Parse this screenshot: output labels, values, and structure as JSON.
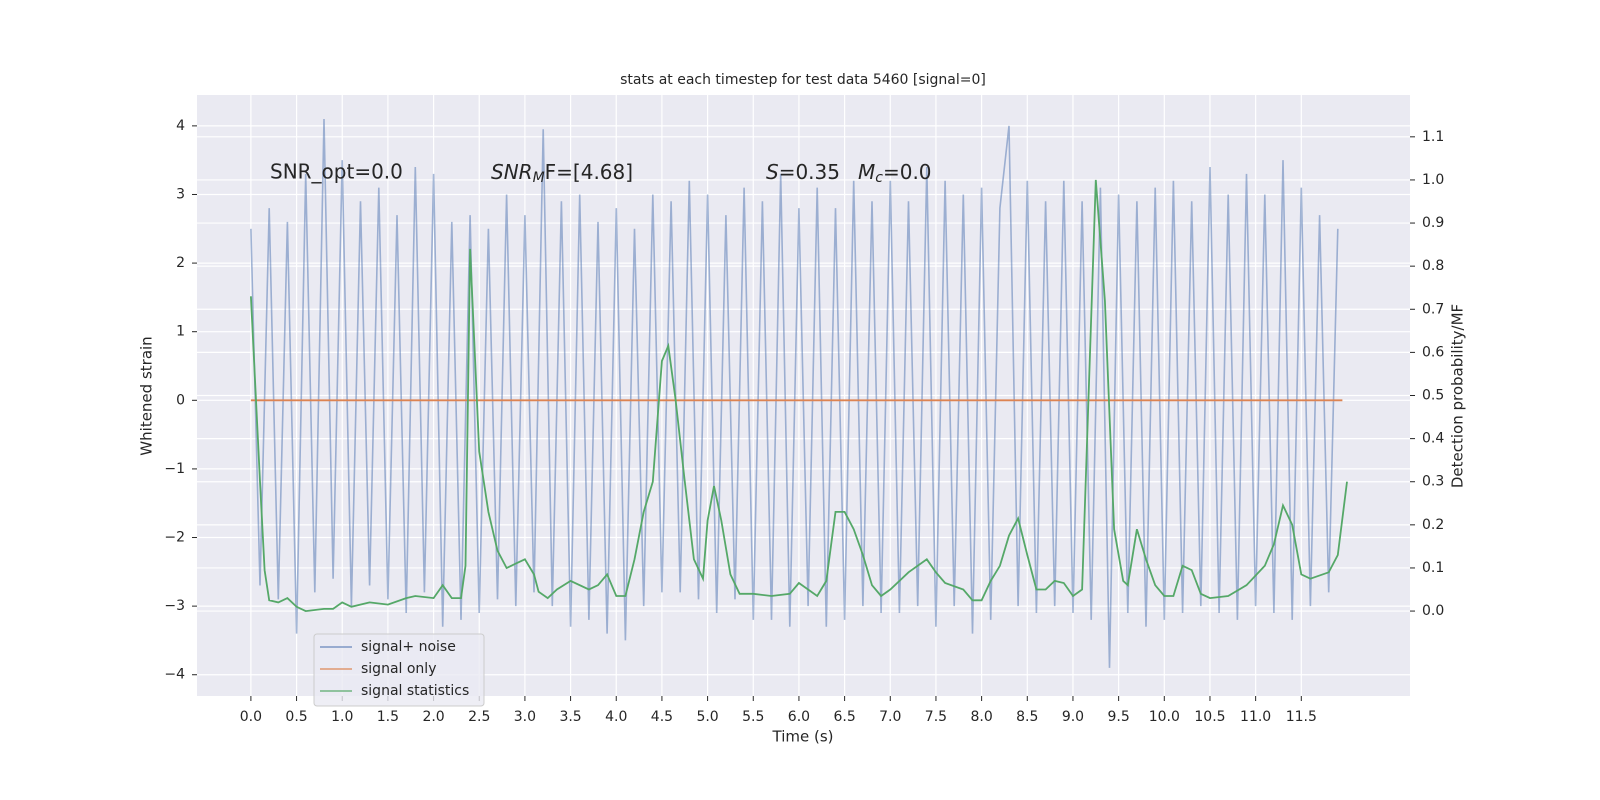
{
  "chart_data": {
    "type": "line",
    "title": "stats at each timestep for test data 5460 [signal=0]",
    "xlabel": "Time (s)",
    "ylabel": "Whitened strain",
    "y2label": "Detection probability/MF",
    "annotations": [
      "SNR_opt=0.0",
      [
        "SNR",
        "M",
        "F=[4.68]"
      ],
      [
        "S",
        "=0.35"
      ],
      [
        "M",
        "c",
        "=0.0"
      ]
    ],
    "xlim": [
      -0.59,
      12.69
    ],
    "ylim": [
      -4.31,
      4.45
    ],
    "y2lim": [
      -0.197,
      1.197
    ],
    "xticks": [
      {
        "value": 0,
        "label": "0.0"
      },
      {
        "value": 0.5,
        "label": "0.5"
      },
      {
        "value": 1,
        "label": "1.0"
      },
      {
        "value": 1.5,
        "label": "1.5"
      },
      {
        "value": 2,
        "label": "2.0"
      },
      {
        "value": 2.5,
        "label": "2.5"
      },
      {
        "value": 3,
        "label": "3.0"
      },
      {
        "value": 3.5,
        "label": "3.5"
      },
      {
        "value": 4,
        "label": "4.0"
      },
      {
        "value": 4.5,
        "label": "4.5"
      },
      {
        "value": 5,
        "label": "5.0"
      },
      {
        "value": 5.5,
        "label": "5.5"
      },
      {
        "value": 6,
        "label": "6.0"
      },
      {
        "value": 6.5,
        "label": "6.5"
      },
      {
        "value": 7,
        "label": "7.0"
      },
      {
        "value": 7.5,
        "label": "7.5"
      },
      {
        "value": 8,
        "label": "8.0"
      },
      {
        "value": 8.5,
        "label": "8.5"
      },
      {
        "value": 9,
        "label": "9.0"
      },
      {
        "value": 9.5,
        "label": "9.5"
      },
      {
        "value": 10,
        "label": "10.0"
      },
      {
        "value": 10.5,
        "label": "10.5"
      },
      {
        "value": 11,
        "label": "11.0"
      },
      {
        "value": 11.5,
        "label": "11.5"
      }
    ],
    "yticks": [
      {
        "value": -4,
        "label": "−4"
      },
      {
        "value": -3,
        "label": "−3"
      },
      {
        "value": -2,
        "label": "−2"
      },
      {
        "value": -1,
        "label": "−1"
      },
      0,
      1,
      2,
      3,
      4
    ],
    "y2ticks": [
      {
        "value": 0,
        "label": "0.0"
      },
      {
        "value": 0.1,
        "label": "0.1"
      },
      {
        "value": 0.2,
        "label": "0.2"
      },
      {
        "value": 0.3,
        "label": "0.3"
      },
      {
        "value": 0.4,
        "label": "0.4"
      },
      {
        "value": 0.5,
        "label": "0.5"
      },
      {
        "value": 0.6,
        "label": "0.6"
      },
      {
        "value": 0.7,
        "label": "0.7"
      },
      {
        "value": 0.8,
        "label": "0.8"
      },
      {
        "value": 0.9,
        "label": "0.9"
      },
      {
        "value": 1,
        "label": "1.0"
      },
      {
        "value": 1.1,
        "label": "1.1"
      }
    ],
    "grid": true,
    "legend": "lower left",
    "series": [
      {
        "name": "signal+ noise",
        "color": "#4c72b0",
        "x": [
          0,
          0.1,
          0.2,
          0.3,
          0.4,
          0.5,
          0.6,
          0.7,
          0.8,
          0.9,
          1,
          1.1,
          1.2,
          1.3,
          1.4,
          1.5,
          1.6,
          1.7,
          1.8,
          1.9,
          2,
          2.1,
          2.2,
          2.3,
          2.4,
          2.5,
          2.6,
          2.7,
          2.8,
          2.9,
          3,
          3.1,
          3.2,
          3.3,
          3.4,
          3.5,
          3.6,
          3.7,
          3.8,
          3.9,
          4,
          4.1,
          4.2,
          4.3,
          4.4,
          4.5,
          4.6,
          4.7,
          4.8,
          4.9,
          5,
          5.1,
          5.2,
          5.3,
          5.4,
          5.5,
          5.6,
          5.7,
          5.8,
          5.9,
          6,
          6.1,
          6.2,
          6.3,
          6.4,
          6.5,
          6.6,
          6.7,
          6.8,
          6.9,
          7,
          7.1,
          7.2,
          7.3,
          7.4,
          7.5,
          7.6,
          7.7,
          7.8,
          7.9,
          8,
          8.1,
          8.2,
          8.3,
          8.4,
          8.5,
          8.6,
          8.7,
          8.8,
          8.9,
          9,
          9.1,
          9.2,
          9.3,
          9.4,
          9.5,
          9.6,
          9.7,
          9.8,
          9.9,
          10,
          10.1,
          10.2,
          10.3,
          10.4,
          10.5,
          10.6,
          10.7,
          10.8,
          10.9,
          11,
          11.1,
          11.2,
          11.3,
          11.4,
          11.5,
          11.6,
          11.7,
          11.8,
          11.9
        ],
        "values": [
          2.5,
          -2.7,
          2.8,
          -2.9,
          2.6,
          -3.4,
          3.3,
          -2.8,
          4.1,
          -2.6,
          3.5,
          -3.0,
          2.9,
          -2.7,
          3.1,
          -2.9,
          2.7,
          -3.1,
          3.4,
          -2.8,
          3.3,
          -3.3,
          2.6,
          -3.2,
          2.7,
          -3.1,
          2.5,
          -2.9,
          3.0,
          -3.0,
          2.7,
          -2.8,
          3.95,
          -3.0,
          2.9,
          -3.3,
          3.0,
          -3.2,
          2.6,
          -3.4,
          2.8,
          -3.5,
          2.5,
          -3.0,
          3.0,
          -2.8,
          2.9,
          -2.8,
          3.2,
          -2.9,
          3.0,
          -3.1,
          2.7,
          -2.9,
          3.1,
          -3.2,
          2.9,
          -3.2,
          3.3,
          -3.3,
          2.8,
          -3.0,
          3.1,
          -3.3,
          2.8,
          -3.2,
          3.2,
          -3.0,
          2.9,
          -3.1,
          3.2,
          -3.1,
          2.9,
          -3.0,
          3.4,
          -3.3,
          3.2,
          -3.0,
          3.0,
          -3.4,
          3.1,
          -3.2,
          2.8,
          4.0,
          -3.0,
          3.2,
          -3.1,
          2.9,
          -3.0,
          3.2,
          -3.1,
          2.9,
          -3.2,
          3.1,
          -3.9,
          3.0,
          -3.1,
          2.9,
          -3.3,
          3.1,
          -3.2,
          3.2,
          -3.1,
          2.9,
          -3.0,
          3.4,
          -3.1,
          3.0,
          -3.2,
          3.3,
          -3.0,
          3.0,
          -3.1,
          3.5,
          -3.2,
          3.1,
          -3.0,
          2.7,
          -2.8,
          2.5
        ]
      },
      {
        "name": "signal only",
        "color": "#dd8452",
        "x": [
          0,
          11.95
        ],
        "values": [
          0,
          0
        ]
      },
      {
        "name": "signal statistics",
        "color": "#55a868",
        "axis": "y2",
        "x": [
          0,
          0.1,
          0.15,
          0.2,
          0.3,
          0.4,
          0.5,
          0.6,
          0.8,
          0.9,
          1,
          1.1,
          1.3,
          1.5,
          1.7,
          1.8,
          2,
          2.1,
          2.2,
          2.3,
          2.35,
          2.4,
          2.5,
          2.6,
          2.7,
          2.8,
          2.9,
          3,
          3.1,
          3.15,
          3.25,
          3.35,
          3.5,
          3.7,
          3.8,
          3.9,
          4,
          4.1,
          4.2,
          4.3,
          4.4,
          4.5,
          4.57,
          4.65,
          4.75,
          4.85,
          4.95,
          5,
          5.07,
          5.15,
          5.25,
          5.35,
          5.5,
          5.7,
          5.9,
          6,
          6.2,
          6.3,
          6.4,
          6.5,
          6.6,
          6.7,
          6.8,
          6.9,
          7,
          7.2,
          7.4,
          7.5,
          7.6,
          7.8,
          7.9,
          8,
          8.1,
          8.2,
          8.3,
          8.4,
          8.5,
          8.6,
          8.7,
          8.8,
          8.9,
          9,
          9.1,
          9.25,
          9.35,
          9.45,
          9.55,
          9.6,
          9.7,
          9.8,
          9.9,
          10,
          10.1,
          10.2,
          10.3,
          10.4,
          10.5,
          10.7,
          10.9,
          11.1,
          11.2,
          11.3,
          11.4,
          11.5,
          11.6,
          11.8,
          11.9,
          12
        ],
        "values": [
          0.73,
          0.3,
          0.095,
          0.025,
          0.02,
          0.03,
          0.01,
          0,
          0.005,
          0.005,
          0.02,
          0.01,
          0.02,
          0.015,
          0.03,
          0.035,
          0.03,
          0.06,
          0.03,
          0.03,
          0.105,
          0.84,
          0.37,
          0.23,
          0.14,
          0.1,
          0.11,
          0.12,
          0.085,
          0.045,
          0.03,
          0.05,
          0.07,
          0.05,
          0.06,
          0.085,
          0.035,
          0.035,
          0.12,
          0.23,
          0.3,
          0.58,
          0.615,
          0.49,
          0.3,
          0.12,
          0.075,
          0.21,
          0.29,
          0.21,
          0.085,
          0.04,
          0.04,
          0.035,
          0.04,
          0.065,
          0.035,
          0.07,
          0.23,
          0.23,
          0.19,
          0.13,
          0.06,
          0.035,
          0.05,
          0.09,
          0.12,
          0.09,
          0.065,
          0.05,
          0.025,
          0.025,
          0.07,
          0.105,
          0.175,
          0.215,
          0.13,
          0.05,
          0.05,
          0.07,
          0.065,
          0.035,
          0.05,
          1.0,
          0.72,
          0.19,
          0.07,
          0.06,
          0.19,
          0.12,
          0.06,
          0.035,
          0.035,
          0.105,
          0.095,
          0.04,
          0.03,
          0.035,
          0.06,
          0.105,
          0.155,
          0.245,
          0.2,
          0.085,
          0.075,
          0.09,
          0.13,
          0.3
        ]
      }
    ]
  }
}
